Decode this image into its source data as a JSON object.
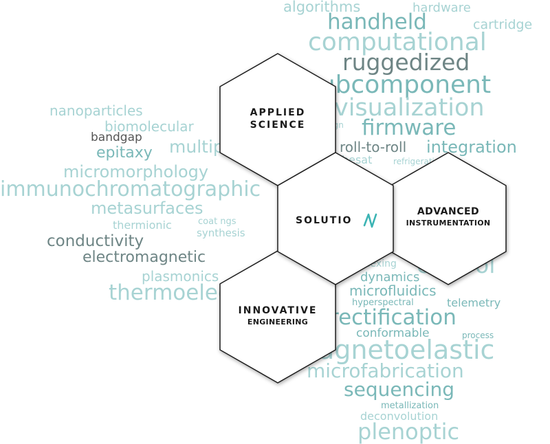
{
  "colors": {
    "teal_light": "#a7d3d3",
    "teal": "#7ab8b8",
    "gray": "#6e8585",
    "dark": "#555555",
    "hex_stroke": "#1a1a1a",
    "logo_accent": "#3cb4b4"
  },
  "word_cloud": {
    "algorithms": "algorithms",
    "hardware": "hardware",
    "handheld": "handheld",
    "cartridge": "cartridge",
    "computational": "computational",
    "ruggedized": "ruggedized",
    "subcomponent": "subcomponent",
    "visualization": "visualization",
    "nanoparticles": "nanoparticles",
    "biomolecular": "biomolecular",
    "design": "design",
    "firmware": "firmware",
    "bandgap": "bandgap",
    "multiphysics": "multiphysics",
    "epitaxy": "epitaxy",
    "roll_to_roll": "roll-to-roll",
    "integration": "integration",
    "cubesat": "cubesat",
    "refrigeration": "refrigeration",
    "micromorphology": "micromorphology",
    "immunochromatographic": "immunochromatographic",
    "metasurfaces": "metasurfaces",
    "thermionic": "thermionic",
    "coatings": "coat ngs",
    "synthesis": "synthesis",
    "conductivity": "conductivity",
    "electromagnetic": "electromagnetic",
    "multiplexing": "multiplexing",
    "control": "control",
    "plasmonics": "plasmonics",
    "dynamics": "dynamics",
    "microfluidics": "microfluidics",
    "thermoelectrics": "thermoelectrics",
    "hyperspectral": "hyperspectral",
    "telemetry": "telemetry",
    "rectification": "rectification",
    "conformable": "conformable",
    "process": "process",
    "magnetoelastic": "magnetoelastic",
    "microfabrication": "microfabrication",
    "sequencing": "sequencing",
    "metallization": "metallization",
    "deconvolution": "deconvolution",
    "plenoptic": "plenoptic"
  },
  "hexagons": {
    "applied": {
      "line1": "APPLIED",
      "line2": "SCIENCE"
    },
    "solution": {
      "label": "SOLUTIO"
    },
    "advanced": {
      "line1": "ADVANCED",
      "line2": "INSTRUMENTATION"
    },
    "innovative": {
      "line1": "INNOVATIVE",
      "line2": "ENGINEERING"
    }
  }
}
